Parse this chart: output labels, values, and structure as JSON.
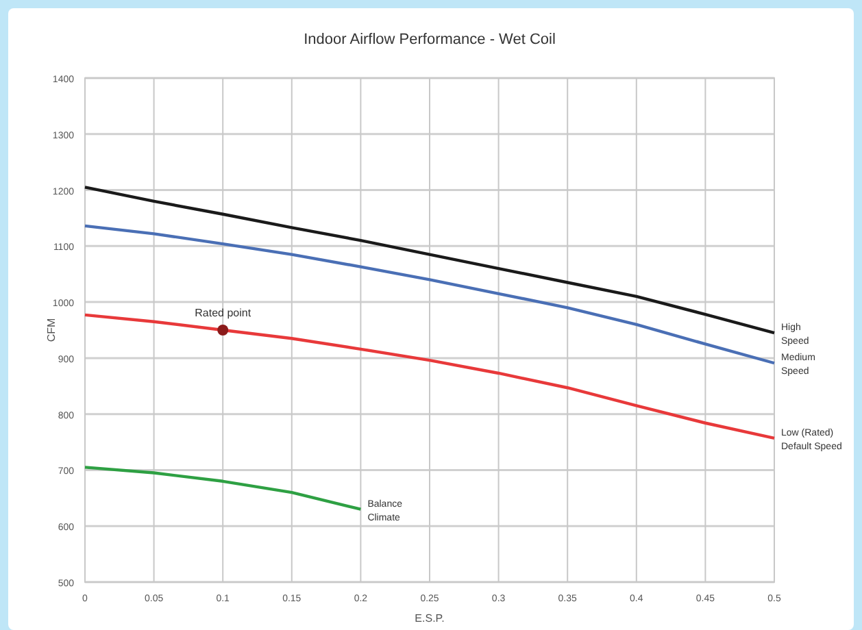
{
  "chart_data": {
    "type": "line",
    "title": "Indoor Airflow Performance - Wet Coil",
    "xlabel": "E.S.P.",
    "ylabel": "CFM",
    "x": [
      0,
      0.05,
      0.1,
      0.15,
      0.2,
      0.25,
      0.3,
      0.35,
      0.4,
      0.45,
      0.5
    ],
    "xlim": [
      0,
      0.5
    ],
    "xticks": [
      0,
      0.05,
      0.1,
      0.15,
      0.2,
      0.25,
      0.3,
      0.35,
      0.4,
      0.45,
      0.5
    ],
    "ylim": [
      500,
      1400
    ],
    "yticks": [
      500,
      600,
      700,
      800,
      900,
      1000,
      1100,
      1200,
      1300,
      1400
    ],
    "grid": true,
    "marker": "none",
    "line_style": "solid",
    "series": [
      {
        "name": "High Speed",
        "color": "#1a1a1a",
        "values": [
          1205,
          1180,
          1157,
          1133,
          1110,
          1085,
          1060,
          1035,
          1010,
          978,
          945
        ]
      },
      {
        "name": "Medium Speed",
        "color": "#4a6fb5",
        "values": [
          1136,
          1122,
          1104,
          1085,
          1063,
          1040,
          1015,
          990,
          960,
          925,
          891
        ]
      },
      {
        "name": "Low (Rated) Default Speed",
        "color": "#e8393a",
        "values": [
          977,
          965,
          950,
          935,
          916,
          896,
          873,
          847,
          815,
          784,
          757
        ]
      },
      {
        "name": "Balance Climate",
        "color": "#2ea043",
        "x": [
          0,
          0.05,
          0.1,
          0.15,
          0.2
        ],
        "values": [
          705,
          695,
          680,
          660,
          630
        ]
      },
      {
        "type": "scatter",
        "color": "#8b1a1a",
        "marker": "circle",
        "x": [
          0.1
        ],
        "values": [
          950
        ]
      }
    ],
    "annotations": [
      {
        "text": "Rated point",
        "x": 0.1,
        "y": 950
      }
    ]
  }
}
